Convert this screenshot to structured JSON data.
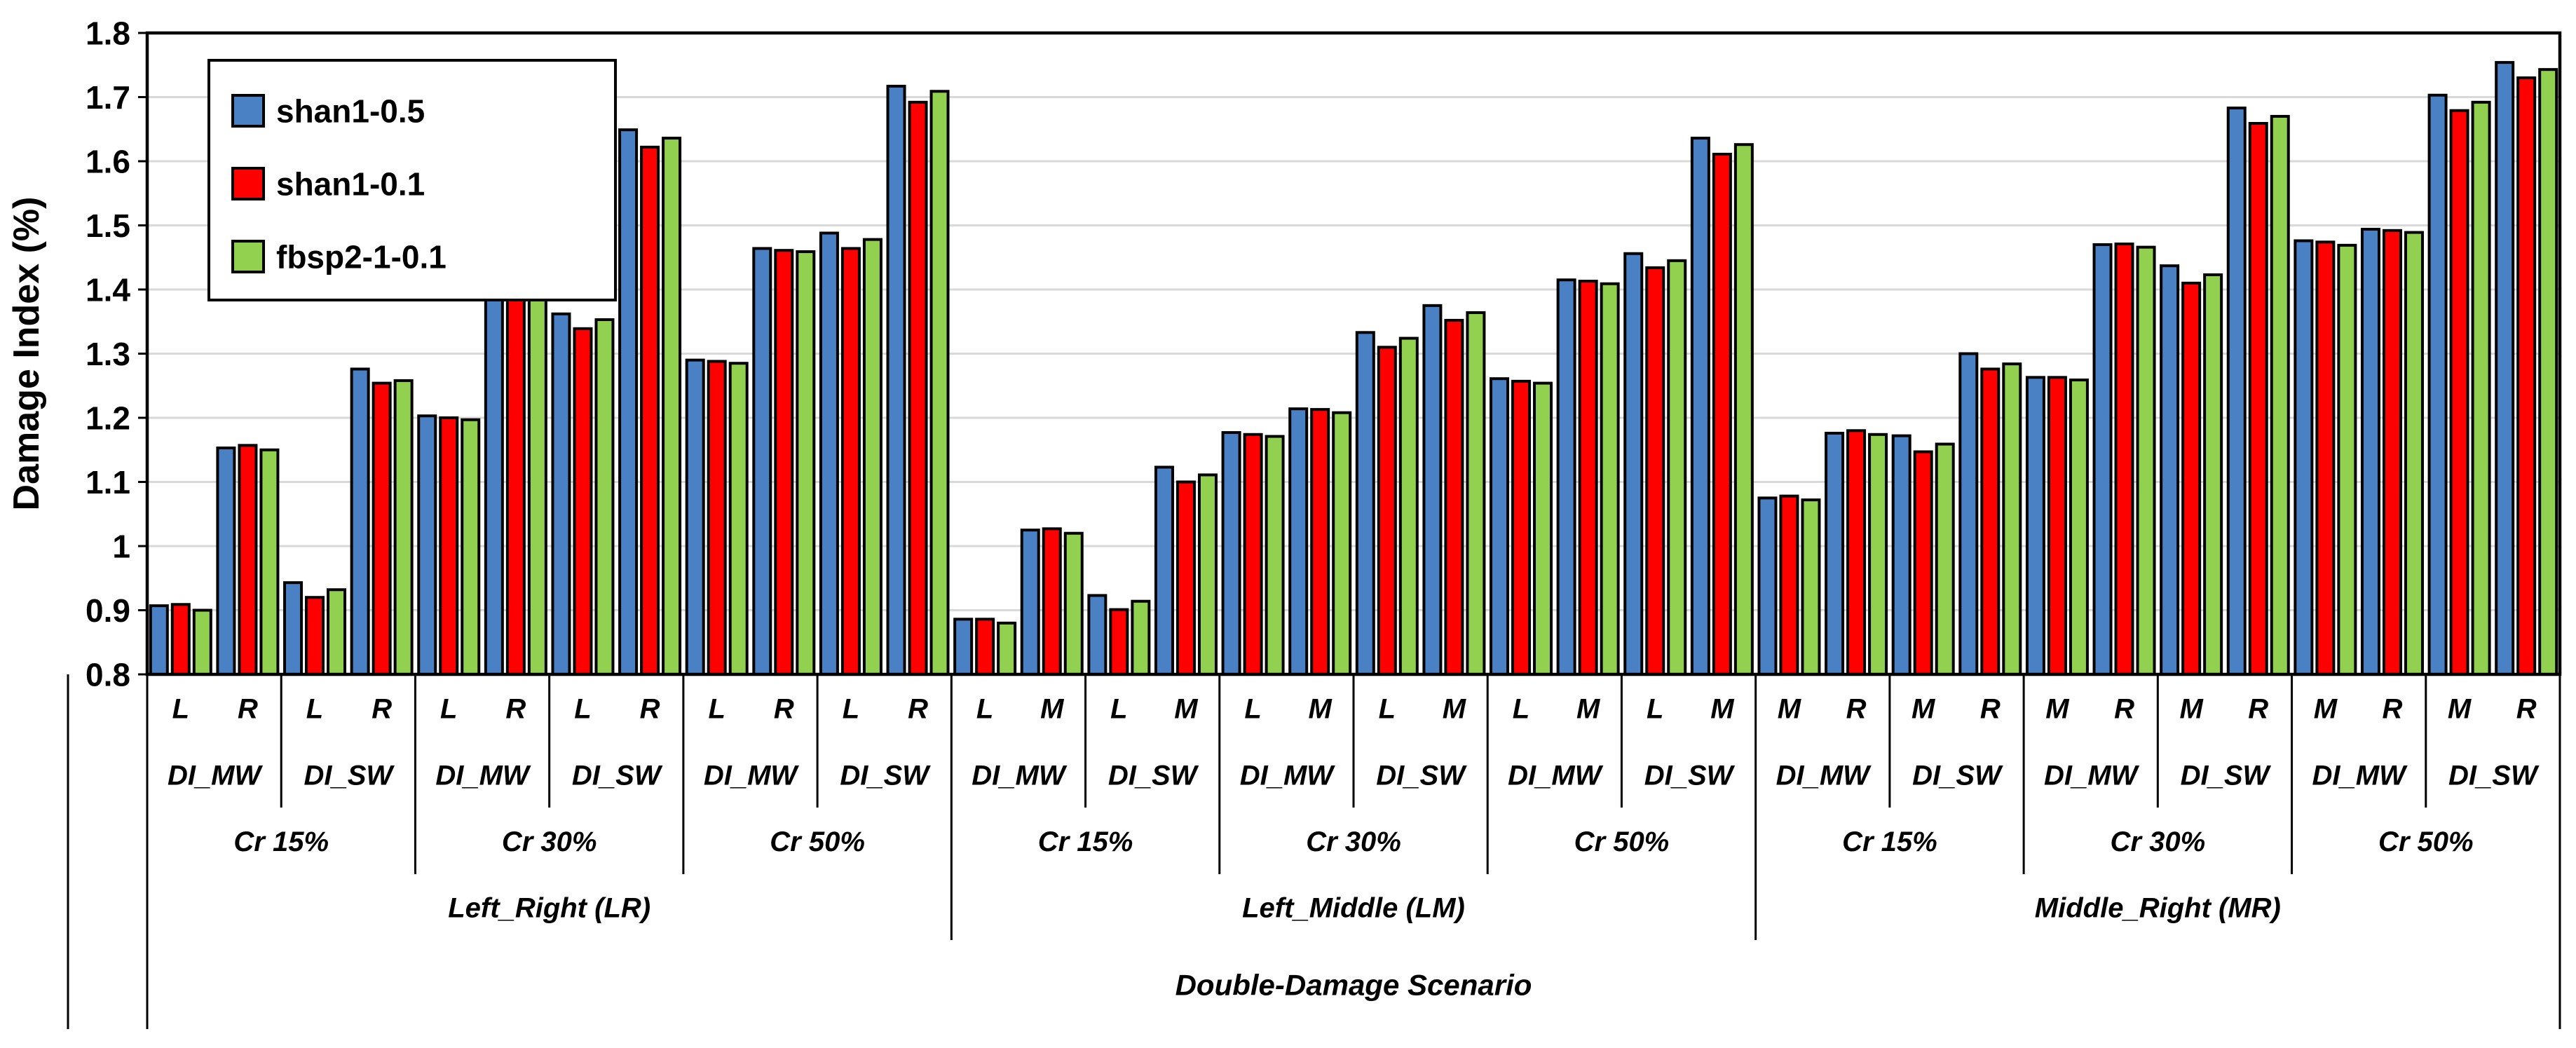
{
  "chart_data": {
    "type": "bar",
    "title": "",
    "ylabel": "Damage Index (%)",
    "xlabel": "Double-Damage Scenario",
    "ylim": [
      0.8,
      1.8
    ],
    "ytick_step": 0.1,
    "yticks": [
      0.8,
      0.9,
      1,
      1.1,
      1.2,
      1.3,
      1.4,
      1.5,
      1.6,
      1.7,
      1.8
    ],
    "grid": true,
    "legend_position": "top-left",
    "series": [
      {
        "name": "shan1-0.5",
        "color": "#4A80C4"
      },
      {
        "name": "shan1-0.1",
        "color": "#FE0000"
      },
      {
        "name": "fbsp2-1-0.1",
        "color": "#92D050"
      }
    ],
    "groups": [
      {
        "label": "Left_Right (LR)",
        "crs": [
          {
            "label": "Cr 15%",
            "dis": [
              {
                "label": "DI_MW",
                "positions": [
                  {
                    "label": "L",
                    "values": [
                      0.907,
                      0.909,
                      0.9
                    ]
                  },
                  {
                    "label": "R",
                    "values": [
                      1.153,
                      1.157,
                      1.15
                    ]
                  }
                ]
              },
              {
                "label": "DI_SW",
                "positions": [
                  {
                    "label": "L",
                    "values": [
                      0.943,
                      0.92,
                      0.932
                    ]
                  },
                  {
                    "label": "R",
                    "values": [
                      1.276,
                      1.254,
                      1.258
                    ]
                  }
                ]
              }
            ]
          },
          {
            "label": "Cr 30%",
            "dis": [
              {
                "label": "DI_MW",
                "positions": [
                  {
                    "label": "L",
                    "values": [
                      1.203,
                      1.2,
                      1.197
                    ]
                  },
                  {
                    "label": "R",
                    "values": [
                      1.44,
                      1.442,
                      1.436
                    ]
                  }
                ]
              },
              {
                "label": "DI_SW",
                "positions": [
                  {
                    "label": "L",
                    "values": [
                      1.362,
                      1.339,
                      1.353
                    ]
                  },
                  {
                    "label": "R",
                    "values": [
                      1.649,
                      1.622,
                      1.636
                    ]
                  }
                ]
              }
            ]
          },
          {
            "label": "Cr 50%",
            "dis": [
              {
                "label": "DI_MW",
                "positions": [
                  {
                    "label": "L",
                    "values": [
                      1.29,
                      1.288,
                      1.285
                    ]
                  },
                  {
                    "label": "R",
                    "values": [
                      1.464,
                      1.461,
                      1.459
                    ]
                  }
                ]
              },
              {
                "label": "DI_SW",
                "positions": [
                  {
                    "label": "L",
                    "values": [
                      1.488,
                      1.464,
                      1.478
                    ]
                  },
                  {
                    "label": "R",
                    "values": [
                      1.717,
                      1.692,
                      1.709
                    ]
                  }
                ]
              }
            ]
          }
        ]
      },
      {
        "label": "Left_Middle (LM)",
        "crs": [
          {
            "label": "Cr 15%",
            "dis": [
              {
                "label": "DI_MW",
                "positions": [
                  {
                    "label": "L",
                    "values": [
                      0.886,
                      0.886,
                      0.88
                    ]
                  },
                  {
                    "label": "M",
                    "values": [
                      1.025,
                      1.027,
                      1.02
                    ]
                  }
                ]
              },
              {
                "label": "DI_SW",
                "positions": [
                  {
                    "label": "L",
                    "values": [
                      0.923,
                      0.901,
                      0.914
                    ]
                  },
                  {
                    "label": "M",
                    "values": [
                      1.123,
                      1.1,
                      1.111
                    ]
                  }
                ]
              }
            ]
          },
          {
            "label": "Cr 30%",
            "dis": [
              {
                "label": "DI_MW",
                "positions": [
                  {
                    "label": "L",
                    "values": [
                      1.177,
                      1.174,
                      1.171
                    ]
                  },
                  {
                    "label": "M",
                    "values": [
                      1.214,
                      1.213,
                      1.208
                    ]
                  }
                ]
              },
              {
                "label": "DI_SW",
                "positions": [
                  {
                    "label": "L",
                    "values": [
                      1.333,
                      1.31,
                      1.324
                    ]
                  },
                  {
                    "label": "M",
                    "values": [
                      1.375,
                      1.352,
                      1.364
                    ]
                  }
                ]
              }
            ]
          },
          {
            "label": "Cr 50%",
            "dis": [
              {
                "label": "DI_MW",
                "positions": [
                  {
                    "label": "L",
                    "values": [
                      1.261,
                      1.257,
                      1.254
                    ]
                  },
                  {
                    "label": "M",
                    "values": [
                      1.415,
                      1.413,
                      1.409
                    ]
                  }
                ]
              },
              {
                "label": "DI_SW",
                "positions": [
                  {
                    "label": "L",
                    "values": [
                      1.456,
                      1.434,
                      1.445
                    ]
                  },
                  {
                    "label": "M",
                    "values": [
                      1.636,
                      1.611,
                      1.626
                    ]
                  }
                ]
              }
            ]
          }
        ]
      },
      {
        "label": "Middle_Right (MR)",
        "crs": [
          {
            "label": "Cr 15%",
            "dis": [
              {
                "label": "DI_MW",
                "positions": [
                  {
                    "label": "M",
                    "values": [
                      1.075,
                      1.078,
                      1.072
                    ]
                  },
                  {
                    "label": "R",
                    "values": [
                      1.176,
                      1.18,
                      1.174
                    ]
                  }
                ]
              },
              {
                "label": "DI_SW",
                "positions": [
                  {
                    "label": "M",
                    "values": [
                      1.172,
                      1.147,
                      1.159
                    ]
                  },
                  {
                    "label": "R",
                    "values": [
                      1.3,
                      1.276,
                      1.284
                    ]
                  }
                ]
              }
            ]
          },
          {
            "label": "Cr 30%",
            "dis": [
              {
                "label": "DI_MW",
                "positions": [
                  {
                    "label": "M",
                    "values": [
                      1.263,
                      1.263,
                      1.259
                    ]
                  },
                  {
                    "label": "R",
                    "values": [
                      1.47,
                      1.471,
                      1.466
                    ]
                  }
                ]
              },
              {
                "label": "DI_SW",
                "positions": [
                  {
                    "label": "M",
                    "values": [
                      1.437,
                      1.41,
                      1.423
                    ]
                  },
                  {
                    "label": "R",
                    "values": [
                      1.683,
                      1.659,
                      1.67
                    ]
                  }
                ]
              }
            ]
          },
          {
            "label": "Cr 50%",
            "dis": [
              {
                "label": "DI_MW",
                "positions": [
                  {
                    "label": "M",
                    "values": [
                      1.476,
                      1.474,
                      1.469
                    ]
                  },
                  {
                    "label": "R",
                    "values": [
                      1.494,
                      1.492,
                      1.489
                    ]
                  }
                ]
              },
              {
                "label": "DI_SW",
                "positions": [
                  {
                    "label": "M",
                    "values": [
                      1.703,
                      1.679,
                      1.692
                    ]
                  },
                  {
                    "label": "R",
                    "values": [
                      1.754,
                      1.73,
                      1.743
                    ]
                  }
                ]
              }
            ]
          }
        ]
      }
    ]
  }
}
